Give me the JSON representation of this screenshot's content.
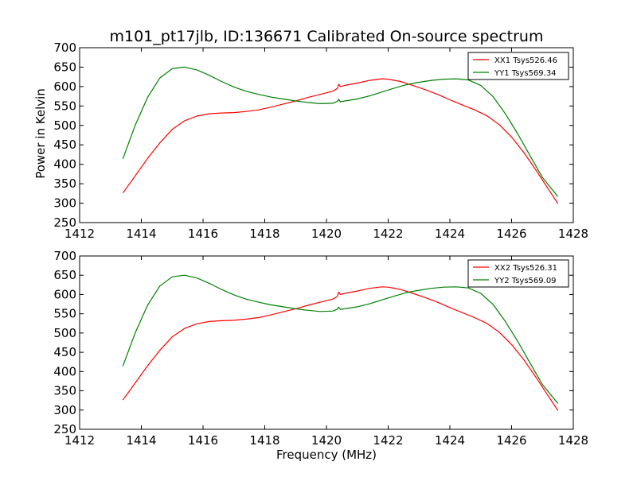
{
  "chart_data": [
    {
      "type": "line",
      "title": "m101_pt17jlb, ID:136671 Calibrated On-source spectrum",
      "xlabel": "",
      "ylabel": "Power in Kelvin",
      "xlim": [
        1412,
        1428
      ],
      "ylim": [
        250,
        700
      ],
      "xticks": [
        "1412",
        "1414",
        "1416",
        "1418",
        "1420",
        "1422",
        "1424",
        "1426",
        "1428"
      ],
      "yticks": [
        "250",
        "300",
        "350",
        "400",
        "450",
        "500",
        "550",
        "600",
        "650",
        "700"
      ],
      "grid": false,
      "legend_position": "top-right",
      "series": [
        {
          "name": "XX1 Tsys526.46",
          "color": "#ff0000",
          "x": [
            1413.4,
            1413.8,
            1414.2,
            1414.6,
            1415.0,
            1415.4,
            1415.8,
            1416.2,
            1416.6,
            1417.0,
            1417.4,
            1417.8,
            1418.2,
            1418.6,
            1419.0,
            1419.4,
            1419.8,
            1420.2,
            1420.35,
            1420.4,
            1420.45,
            1420.6,
            1421.0,
            1421.4,
            1421.8,
            1422.0,
            1422.4,
            1422.8,
            1423.2,
            1423.6,
            1424.0,
            1424.4,
            1424.8,
            1425.2,
            1425.6,
            1426.0,
            1426.4,
            1426.8,
            1427.2,
            1427.5
          ],
          "y": [
            326,
            370,
            415,
            455,
            490,
            512,
            524,
            530,
            532,
            533,
            536,
            540,
            547,
            555,
            563,
            572,
            580,
            588,
            595,
            606,
            600,
            603,
            609,
            616,
            620,
            619,
            613,
            603,
            592,
            580,
            566,
            553,
            540,
            525,
            502,
            470,
            430,
            384,
            335,
            299
          ]
        },
        {
          "name": "YY1 Tsys569.34",
          "color": "#008000",
          "x": [
            1413.4,
            1413.8,
            1414.2,
            1414.6,
            1415.0,
            1415.4,
            1415.8,
            1416.2,
            1416.6,
            1417.0,
            1417.4,
            1417.8,
            1418.2,
            1418.6,
            1419.0,
            1419.4,
            1419.8,
            1420.2,
            1420.35,
            1420.4,
            1420.45,
            1420.6,
            1421.0,
            1421.4,
            1421.8,
            1422.2,
            1422.6,
            1423.0,
            1423.4,
            1423.8,
            1424.2,
            1424.6,
            1425.0,
            1425.4,
            1425.8,
            1426.2,
            1426.6,
            1427.0,
            1427.5
          ],
          "y": [
            414,
            500,
            572,
            622,
            646,
            650,
            643,
            629,
            613,
            599,
            588,
            580,
            573,
            568,
            563,
            559,
            556,
            557,
            562,
            567,
            561,
            563,
            568,
            576,
            586,
            596,
            605,
            611,
            616,
            619,
            620,
            617,
            603,
            574,
            530,
            478,
            422,
            366,
            317
          ]
        }
      ]
    },
    {
      "type": "line",
      "title": "",
      "xlabel": "Frequency (MHz)",
      "ylabel": "",
      "xlim": [
        1412,
        1428
      ],
      "ylim": [
        250,
        700
      ],
      "xticks": [
        "1412",
        "1414",
        "1416",
        "1418",
        "1420",
        "1422",
        "1424",
        "1426",
        "1428"
      ],
      "yticks": [
        "250",
        "300",
        "350",
        "400",
        "450",
        "500",
        "550",
        "600",
        "650",
        "700"
      ],
      "grid": false,
      "legend_position": "top-right",
      "series": [
        {
          "name": "XX2 Tsys526.31",
          "color": "#ff0000",
          "x": [
            1413.4,
            1413.8,
            1414.2,
            1414.6,
            1415.0,
            1415.4,
            1415.8,
            1416.2,
            1416.6,
            1417.0,
            1417.4,
            1417.8,
            1418.2,
            1418.6,
            1419.0,
            1419.4,
            1419.8,
            1420.2,
            1420.35,
            1420.4,
            1420.45,
            1420.6,
            1421.0,
            1421.4,
            1421.8,
            1422.0,
            1422.4,
            1422.8,
            1423.2,
            1423.6,
            1424.0,
            1424.4,
            1424.8,
            1425.2,
            1425.6,
            1426.0,
            1426.4,
            1426.8,
            1427.2,
            1427.5
          ],
          "y": [
            326,
            370,
            415,
            455,
            490,
            512,
            524,
            530,
            532,
            533,
            536,
            540,
            547,
            555,
            563,
            572,
            580,
            588,
            595,
            606,
            600,
            603,
            609,
            616,
            620,
            619,
            613,
            603,
            592,
            580,
            566,
            553,
            540,
            525,
            502,
            470,
            430,
            384,
            335,
            299
          ]
        },
        {
          "name": "YY2 Tsys569.09",
          "color": "#008000",
          "x": [
            1413.4,
            1413.8,
            1414.2,
            1414.6,
            1415.0,
            1415.4,
            1415.8,
            1416.2,
            1416.6,
            1417.0,
            1417.4,
            1417.8,
            1418.2,
            1418.6,
            1419.0,
            1419.4,
            1419.8,
            1420.2,
            1420.35,
            1420.4,
            1420.45,
            1420.6,
            1421.0,
            1421.4,
            1421.8,
            1422.2,
            1422.6,
            1423.0,
            1423.4,
            1423.8,
            1424.2,
            1424.6,
            1425.0,
            1425.4,
            1425.8,
            1426.2,
            1426.6,
            1427.0,
            1427.5
          ],
          "y": [
            414,
            500,
            572,
            622,
            646,
            650,
            643,
            629,
            613,
            599,
            588,
            580,
            573,
            568,
            563,
            559,
            556,
            557,
            562,
            567,
            561,
            563,
            568,
            576,
            586,
            596,
            605,
            611,
            616,
            619,
            620,
            617,
            603,
            574,
            530,
            478,
            422,
            366,
            317
          ]
        }
      ]
    }
  ]
}
